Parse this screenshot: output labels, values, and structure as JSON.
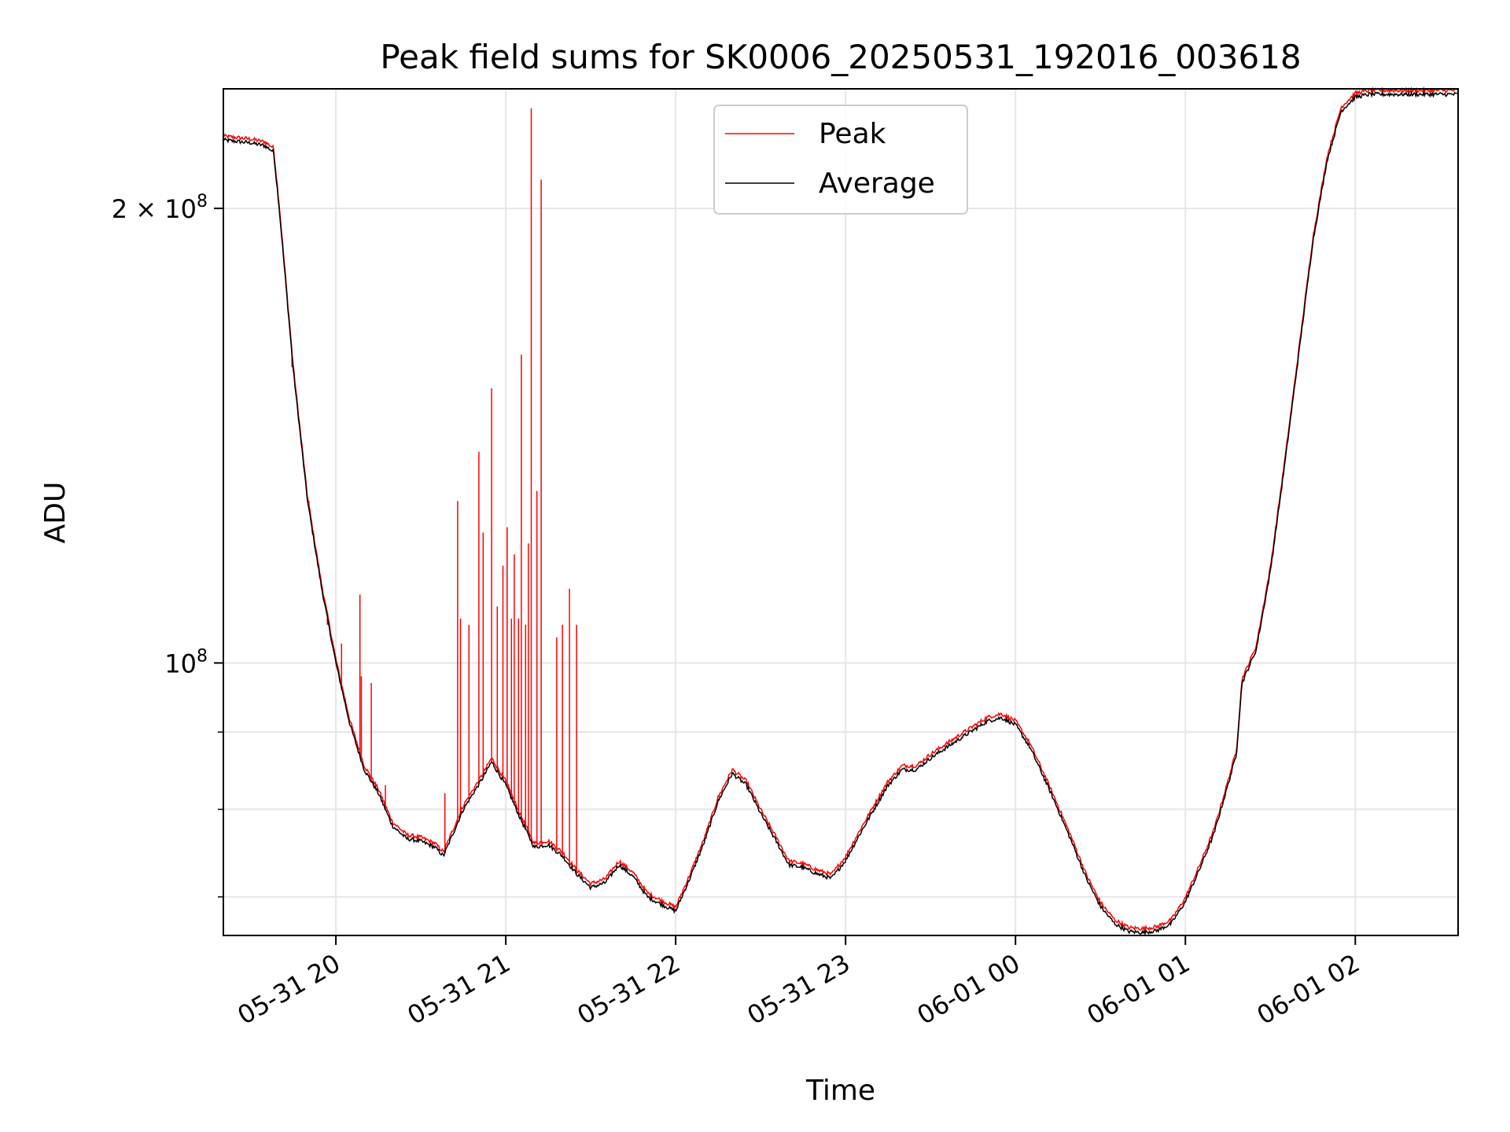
{
  "chart_data": {
    "type": "line",
    "title": "Peak field sums for SK0006_20250531_192016_003618",
    "xlabel": "Time",
    "ylabel": "ADU",
    "y_scale": "log",
    "ylim": [
      66000000,
      240000000
    ],
    "xlim": [
      "2025-05-31T19:20:16",
      "2025-06-01T02:36:18"
    ],
    "grid": true,
    "legend": "top-center",
    "x_ticks": [
      {
        "value": "2025-05-31T20:00",
        "label": "05-31 20"
      },
      {
        "value": "2025-05-31T21:00",
        "label": "05-31 21"
      },
      {
        "value": "2025-05-31T22:00",
        "label": "05-31 22"
      },
      {
        "value": "2025-05-31T23:00",
        "label": "05-31 23"
      },
      {
        "value": "2025-06-01T00:00",
        "label": "06-01 00"
      },
      {
        "value": "2025-06-01T01:00",
        "label": "06-01 01"
      },
      {
        "value": "2025-06-01T02:00",
        "label": "06-01 02"
      }
    ],
    "y_ticks": [
      {
        "value": 100000000,
        "base": "10",
        "exp": "8",
        "prefix": ""
      },
      {
        "value": 200000000,
        "base": "10",
        "exp": "8",
        "prefix": "2 × "
      }
    ],
    "y_minor_ticks": [
      70000000,
      80000000,
      90000000
    ],
    "series": [
      {
        "name": "Average",
        "color": "#000000",
        "x": [
          "2025-05-31T19:20",
          "2025-05-31T19:30",
          "2025-05-31T19:35",
          "2025-05-31T19:38",
          "2025-05-31T19:40",
          "2025-05-31T19:45",
          "2025-05-31T19:50",
          "2025-05-31T19:55",
          "2025-05-31T20:00",
          "2025-05-31T20:05",
          "2025-05-31T20:10",
          "2025-05-31T20:15",
          "2025-05-31T20:20",
          "2025-05-31T20:25",
          "2025-05-31T20:30",
          "2025-05-31T20:35",
          "2025-05-31T20:38",
          "2025-05-31T20:45",
          "2025-05-31T20:52",
          "2025-05-31T20:55",
          "2025-05-31T21:00",
          "2025-05-31T21:05",
          "2025-05-31T21:10",
          "2025-05-31T21:15",
          "2025-05-31T21:20",
          "2025-05-31T21:25",
          "2025-05-31T21:30",
          "2025-05-31T21:35",
          "2025-05-31T21:40",
          "2025-05-31T21:45",
          "2025-05-31T21:50",
          "2025-05-31T21:55",
          "2025-05-31T22:00",
          "2025-05-31T22:05",
          "2025-05-31T22:10",
          "2025-05-31T22:15",
          "2025-05-31T22:20",
          "2025-05-31T22:25",
          "2025-05-31T22:30",
          "2025-05-31T22:35",
          "2025-05-31T22:40",
          "2025-05-31T22:45",
          "2025-05-31T22:50",
          "2025-05-31T22:55",
          "2025-05-31T23:00",
          "2025-05-31T23:05",
          "2025-05-31T23:10",
          "2025-05-31T23:15",
          "2025-05-31T23:20",
          "2025-05-31T23:25",
          "2025-05-31T23:30",
          "2025-05-31T23:40",
          "2025-05-31T23:50",
          "2025-05-31T23:55",
          "2025-06-01T00:00",
          "2025-06-01T00:05",
          "2025-06-01T00:10",
          "2025-06-01T00:15",
          "2025-06-01T00:20",
          "2025-06-01T00:25",
          "2025-06-01T00:30",
          "2025-06-01T00:35",
          "2025-06-01T00:40",
          "2025-06-01T00:45",
          "2025-06-01T00:50",
          "2025-06-01T00:55",
          "2025-06-01T01:00",
          "2025-06-01T01:05",
          "2025-06-01T01:10",
          "2025-06-01T01:15",
          "2025-06-01T01:18",
          "2025-06-01T01:20",
          "2025-06-01T01:25",
          "2025-06-01T01:30",
          "2025-06-01T01:35",
          "2025-06-01T01:40",
          "2025-06-01T01:45",
          "2025-06-01T01:50",
          "2025-06-01T01:55",
          "2025-06-01T02:00",
          "2025-06-01T02:05",
          "2025-06-01T02:10",
          "2025-06-01T02:20",
          "2025-06-01T02:30",
          "2025-06-01T02:36"
        ],
        "y": [
          222000000,
          221000000,
          220000000,
          218000000,
          200000000,
          156000000,
          128000000,
          112000000,
          100000000,
          91000000,
          85000000,
          82000000,
          78000000,
          76500000,
          76200000,
          75500000,
          74500000,
          80000000,
          84000000,
          86000000,
          83000000,
          79000000,
          75500000,
          75800000,
          74500000,
          72500000,
          71000000,
          71500000,
          73500000,
          72200000,
          70000000,
          69200000,
          68500000,
          72000000,
          76000000,
          81000000,
          84500000,
          83000000,
          79500000,
          76500000,
          73500000,
          73200000,
          72500000,
          72000000,
          74000000,
          77000000,
          80000000,
          83000000,
          85000000,
          85000000,
          86500000,
          89000000,
          91500000,
          92000000,
          91000000,
          88000000,
          84000000,
          80000000,
          76000000,
          72000000,
          69000000,
          67200000,
          66400000,
          66300000,
          66500000,
          67200000,
          69500000,
          73000000,
          77000000,
          83000000,
          87000000,
          97000000,
          102000000,
          115000000,
          135000000,
          160000000,
          190000000,
          215000000,
          232000000,
          237000000,
          238000000,
          238000000,
          238000000,
          238000000,
          238000000
        ]
      },
      {
        "name": "Peak",
        "color": "#ff0000",
        "spikes": [
          {
            "x": "2025-05-31T19:44:30",
            "y": 157000000
          },
          {
            "x": "2025-05-31T19:50:30",
            "y": 128000000
          },
          {
            "x": "2025-05-31T19:52:30",
            "y": 120000000
          },
          {
            "x": "2025-05-31T19:57:00",
            "y": 106000000
          },
          {
            "x": "2025-05-31T20:02:00",
            "y": 103000000
          },
          {
            "x": "2025-05-31T20:08:30",
            "y": 111000000
          },
          {
            "x": "2025-05-31T20:09:00",
            "y": 98000000
          },
          {
            "x": "2025-05-31T20:12:30",
            "y": 97000000
          },
          {
            "x": "2025-05-31T20:17:30",
            "y": 83000000
          },
          {
            "x": "2025-05-31T20:38:30",
            "y": 82000000
          },
          {
            "x": "2025-05-31T20:43:00",
            "y": 128000000
          },
          {
            "x": "2025-05-31T20:44:00",
            "y": 107000000
          },
          {
            "x": "2025-05-31T20:47:00",
            "y": 106000000
          },
          {
            "x": "2025-05-31T20:50:30",
            "y": 138000000
          },
          {
            "x": "2025-05-31T20:52:00",
            "y": 122000000
          },
          {
            "x": "2025-05-31T20:55:00",
            "y": 152000000
          },
          {
            "x": "2025-05-31T20:57:00",
            "y": 109000000
          },
          {
            "x": "2025-05-31T20:59:00",
            "y": 116000000
          },
          {
            "x": "2025-05-31T21:00:30",
            "y": 123000000
          },
          {
            "x": "2025-05-31T21:02:00",
            "y": 107000000
          },
          {
            "x": "2025-05-31T21:03:00",
            "y": 118000000
          },
          {
            "x": "2025-05-31T21:04:30",
            "y": 107000000
          },
          {
            "x": "2025-05-31T21:05:30",
            "y": 160000000
          },
          {
            "x": "2025-05-31T21:07:00",
            "y": 106000000
          },
          {
            "x": "2025-05-31T21:08:00",
            "y": 120000000
          },
          {
            "x": "2025-05-31T21:09:00",
            "y": 233000000
          },
          {
            "x": "2025-05-31T21:11:00",
            "y": 130000000
          },
          {
            "x": "2025-05-31T21:12:30",
            "y": 209000000
          },
          {
            "x": "2025-05-31T21:18:00",
            "y": 104000000
          },
          {
            "x": "2025-05-31T21:20:00",
            "y": 106000000
          },
          {
            "x": "2025-05-31T21:22:30",
            "y": 112000000
          },
          {
            "x": "2025-05-31T21:25:00",
            "y": 106000000
          }
        ]
      }
    ]
  }
}
